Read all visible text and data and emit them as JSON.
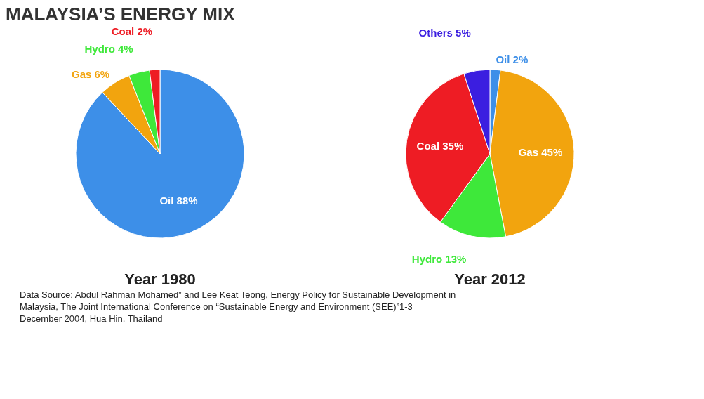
{
  "chart_data": [
    {
      "type": "pie",
      "title": "MALAYSIA’S ENERGY MIX",
      "subtitle": "Year 1980",
      "categories": [
        "Oil",
        "Gas",
        "Hydro",
        "Coal"
      ],
      "values": [
        88,
        6,
        4,
        2
      ],
      "colors": [
        "#3d8fe8",
        "#f2a40e",
        "#3ee83a",
        "#ee1c24"
      ],
      "value_labels": [
        "88%",
        "6%",
        "4%",
        "2%"
      ],
      "annotations": [
        "Data Source: Abdul Rahman Mohamed” and Lee Keat Teong, Energy Policy for Sustainable Development in Malaysia, The Joint International Conference on “Sustainable Energy and Environment (SEE)”1-3 December 2004, Hua Hin, Thailand"
      ]
    },
    {
      "type": "pie",
      "subtitle": "Year 2012",
      "categories": [
        "Oil",
        "Gas",
        "Hydro",
        "Coal",
        "Others"
      ],
      "values": [
        2,
        45,
        13,
        35,
        5
      ],
      "colors": [
        "#3d8fe8",
        "#f2a40e",
        "#3ee83a",
        "#ee1c24",
        "#3b1ee0"
      ],
      "value_labels": [
        "2%",
        "45%",
        "13%",
        "35%",
        "5%"
      ]
    }
  ]
}
